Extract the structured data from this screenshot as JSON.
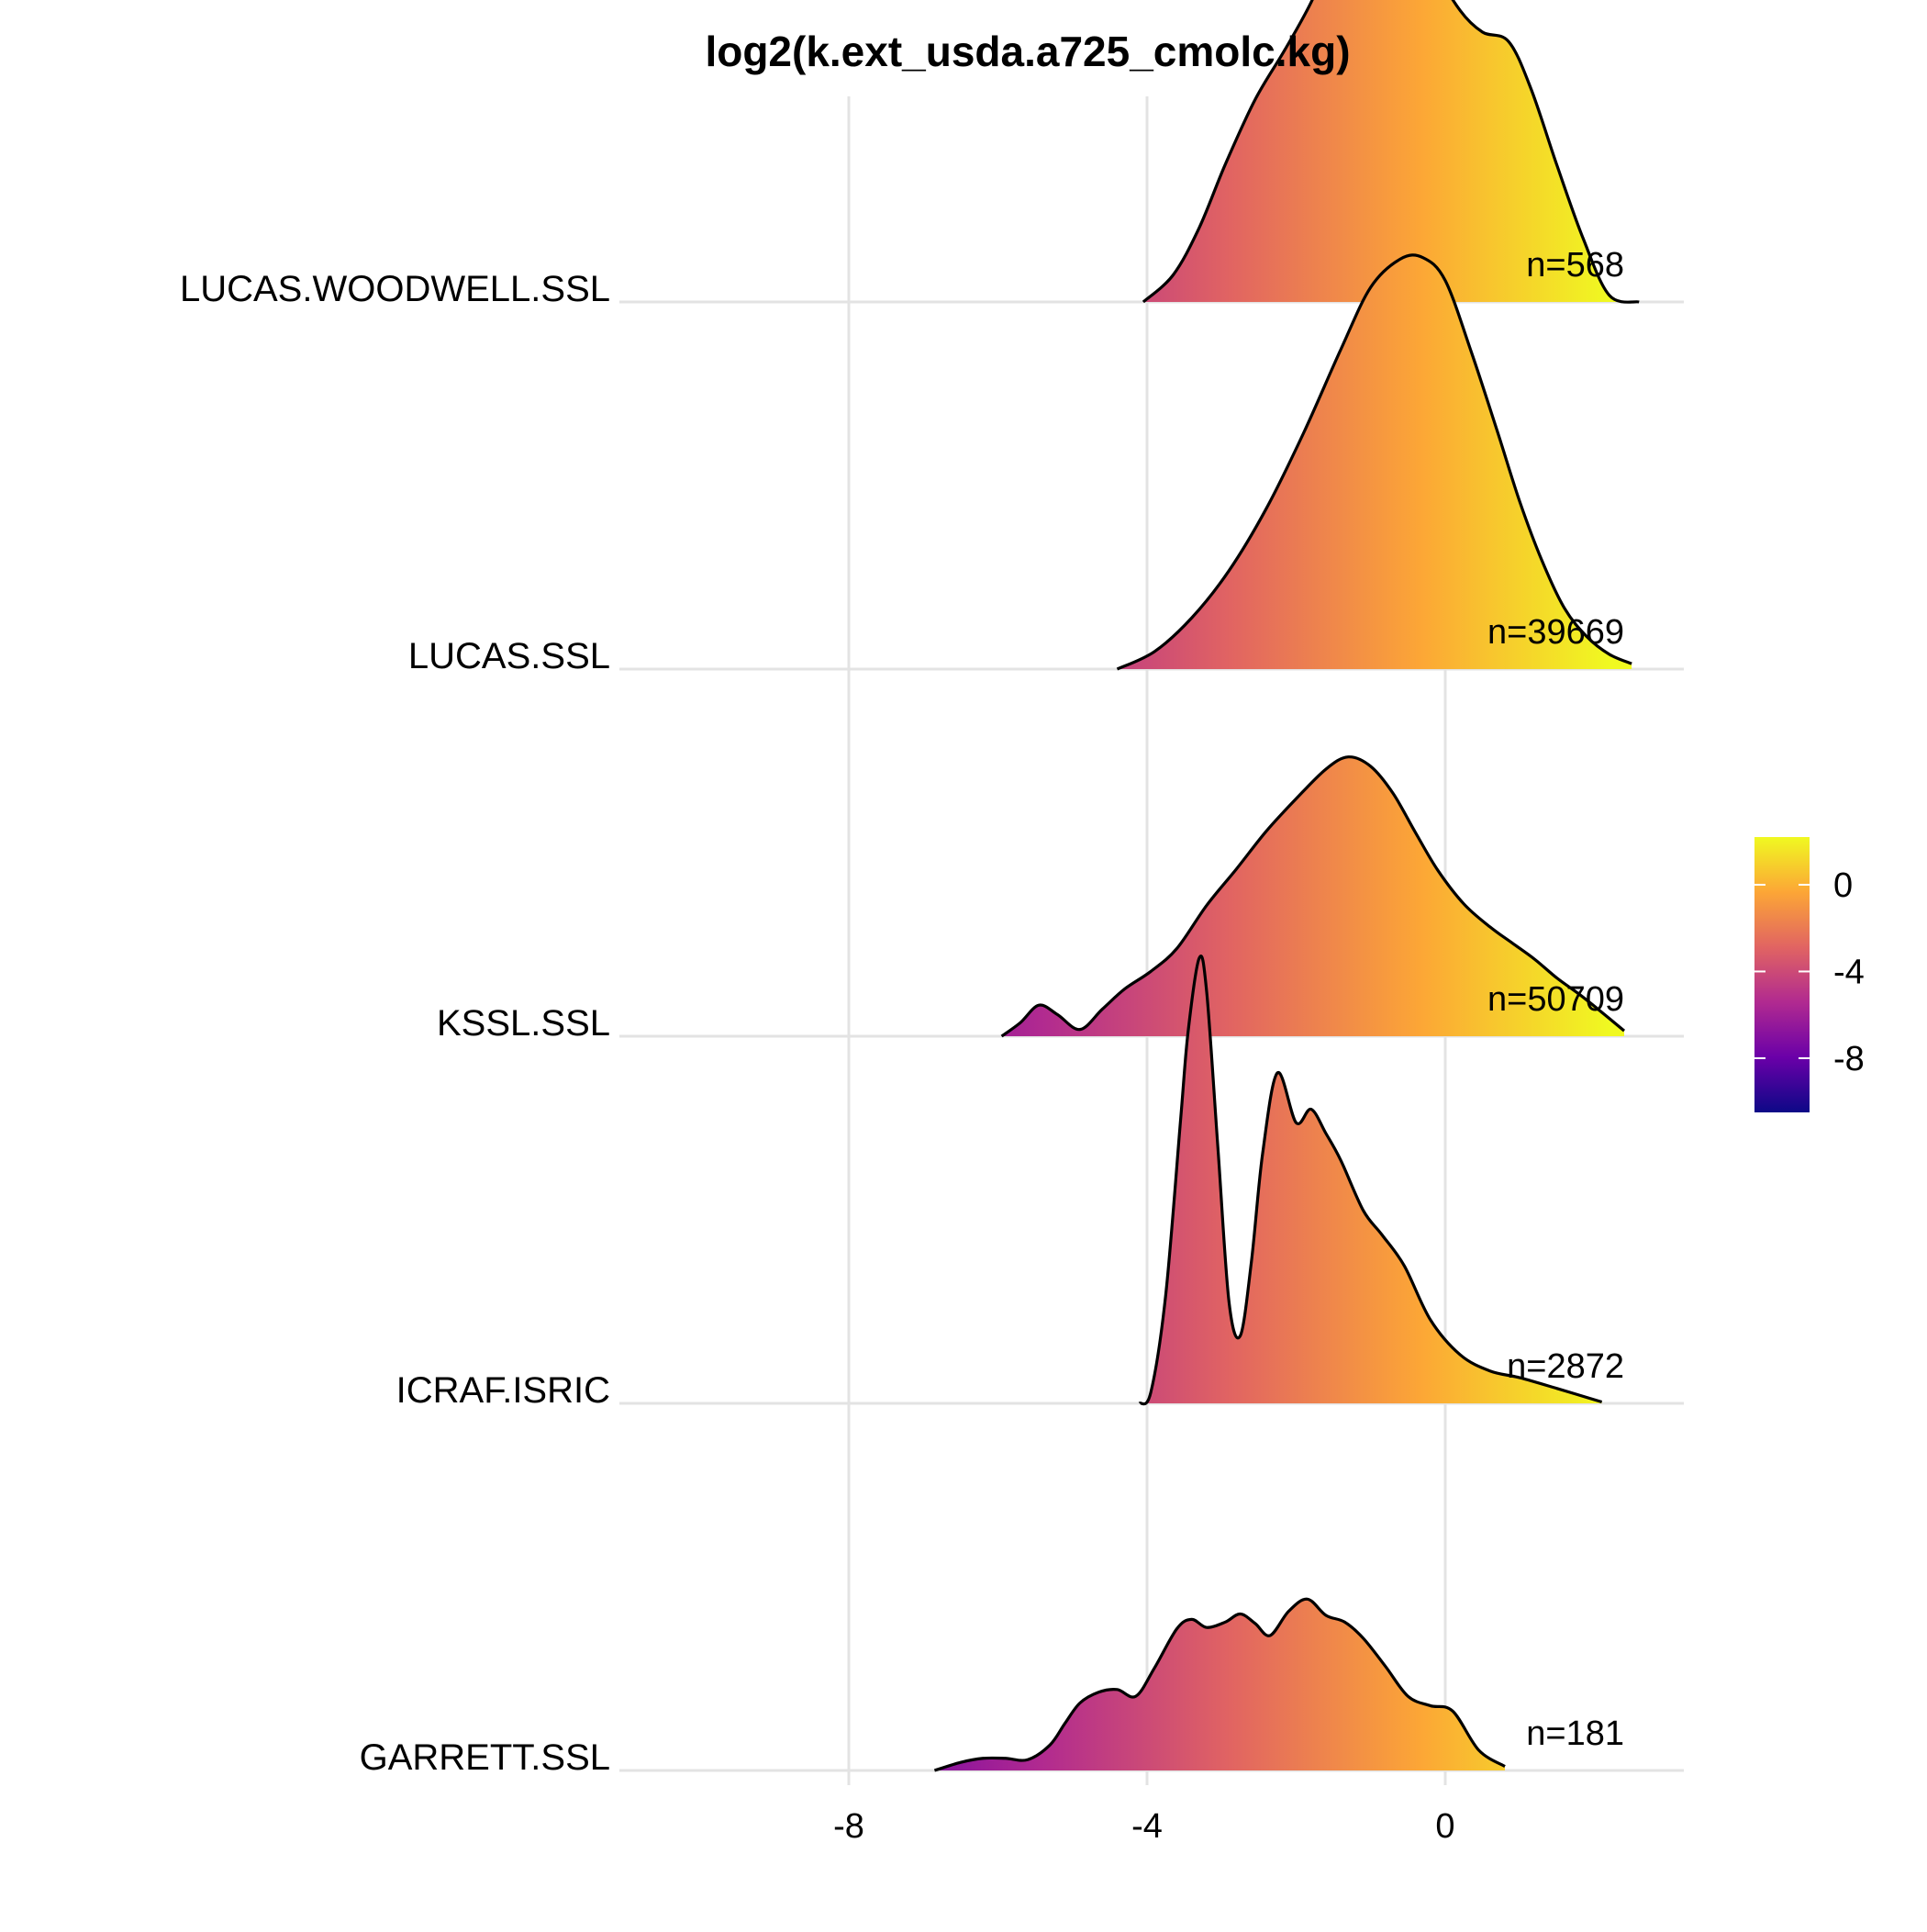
{
  "chart_data": {
    "type": "area",
    "subtype": "ridgeline-density",
    "title": "log2(k.ext_usda.a725_cmolc.kg)",
    "xlabel": "",
    "ylabel": "",
    "xlim": [
      -11,
      3.2
    ],
    "x_ticks": [
      -8,
      -4,
      0
    ],
    "x_tick_labels": [
      "-8",
      "-4",
      "0"
    ],
    "grid": true,
    "fill": "gradient along x (plasma palette)",
    "legend": {
      "position": "right",
      "type": "colorbar",
      "range": [
        -10.5,
        2.2
      ],
      "ticks": [
        0,
        -4,
        -8
      ],
      "tick_labels": [
        "0",
        "-4",
        "-8"
      ],
      "colors": [
        "#0d0887",
        "#6a00a8",
        "#b12a90",
        "#e16462",
        "#fca636",
        "#f0f921"
      ]
    },
    "series": [
      {
        "name": "GARRETT.SSL",
        "n_label": "n=181",
        "x": [
          -6.85,
          -6.5,
          -6.2,
          -5.9,
          -5.6,
          -5.3,
          -5.1,
          -4.9,
          -4.65,
          -4.4,
          -4.15,
          -3.9,
          -3.6,
          -3.4,
          -3.2,
          -2.95,
          -2.75,
          -2.55,
          -2.35,
          -2.1,
          -1.85,
          -1.6,
          -1.35,
          -1.1,
          -0.8,
          -0.5,
          -0.2,
          0.1,
          0.45,
          0.8
        ],
        "y": [
          0.0,
          0.06,
          0.09,
          0.09,
          0.08,
          0.19,
          0.35,
          0.5,
          0.58,
          0.6,
          0.55,
          0.76,
          1.05,
          1.12,
          1.06,
          1.1,
          1.16,
          1.09,
          1.0,
          1.18,
          1.27,
          1.15,
          1.1,
          0.98,
          0.77,
          0.55,
          0.48,
          0.44,
          0.15,
          0.03
        ]
      },
      {
        "name": "ICRAF.ISRIC",
        "n_label": "n=2872",
        "x": [
          -4.1,
          -3.95,
          -3.75,
          -3.55,
          -3.45,
          -3.3,
          -3.2,
          -3.05,
          -2.9,
          -2.75,
          -2.6,
          -2.45,
          -2.25,
          -2.0,
          -1.8,
          -1.6,
          -1.4,
          -1.1,
          -0.85,
          -0.55,
          -0.2,
          0.2,
          0.6,
          1.0,
          1.5,
          2.1
        ],
        "y": [
          0.0,
          0.08,
          0.8,
          2.1,
          2.75,
          3.3,
          3.05,
          1.9,
          0.75,
          0.5,
          1.05,
          1.85,
          2.45,
          2.08,
          2.18,
          2.0,
          1.8,
          1.43,
          1.25,
          1.02,
          0.62,
          0.36,
          0.24,
          0.19,
          0.11,
          0.01
        ]
      },
      {
        "name": "KSSL.SSL",
        "n_label": "n=50709",
        "x": [
          -5.95,
          -5.7,
          -5.45,
          -5.2,
          -4.9,
          -4.6,
          -4.3,
          -3.95,
          -3.6,
          -3.2,
          -2.8,
          -2.4,
          -2.0,
          -1.6,
          -1.3,
          -1.0,
          -0.7,
          -0.4,
          -0.1,
          0.25,
          0.6,
          0.9,
          1.2,
          1.5,
          1.8,
          2.05,
          2.4
        ],
        "y": [
          0.0,
          0.1,
          0.23,
          0.16,
          0.05,
          0.2,
          0.35,
          0.48,
          0.65,
          0.97,
          1.24,
          1.52,
          1.76,
          1.98,
          2.07,
          2.0,
          1.8,
          1.51,
          1.23,
          0.98,
          0.81,
          0.69,
          0.57,
          0.43,
          0.31,
          0.2,
          0.04
        ]
      },
      {
        "name": "LUCAS.SSL",
        "n_label": "n=39669",
        "x": [
          -4.4,
          -3.9,
          -3.4,
          -2.9,
          -2.4,
          -1.9,
          -1.4,
          -1.0,
          -0.6,
          -0.3,
          0.0,
          0.35,
          0.7,
          1.0,
          1.3,
          1.6,
          1.9,
          2.2,
          2.5
        ],
        "y": [
          0.0,
          0.13,
          0.38,
          0.73,
          1.19,
          1.75,
          2.37,
          2.83,
          3.04,
          3.05,
          2.88,
          2.35,
          1.76,
          1.24,
          0.8,
          0.45,
          0.24,
          0.11,
          0.04
        ]
      },
      {
        "name": "LUCAS.WOODWELL.SSL",
        "n_label": "n=568",
        "x": [
          -4.05,
          -3.65,
          -3.3,
          -2.95,
          -2.55,
          -2.15,
          -1.8,
          -1.5,
          -1.2,
          -0.9,
          -0.6,
          -0.35,
          -0.1,
          0.2,
          0.5,
          0.85,
          1.15,
          1.5,
          1.85,
          2.2,
          2.6
        ],
        "y": [
          0.0,
          0.2,
          0.55,
          1.02,
          1.5,
          1.87,
          2.22,
          2.6,
          2.78,
          2.82,
          3.07,
          2.88,
          2.45,
          2.16,
          2.0,
          1.93,
          1.58,
          1.01,
          0.47,
          0.05,
          0.0
        ]
      }
    ]
  }
}
